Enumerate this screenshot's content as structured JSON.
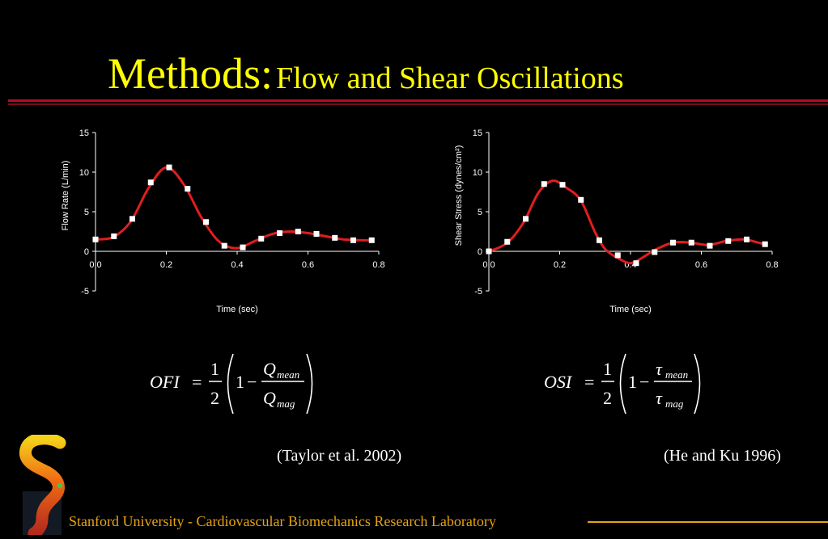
{
  "slide": {
    "title_main": "Methods:",
    "title_sub": "Flow and Shear Oscillations",
    "citation_left": "(Taylor et al. 2002)",
    "citation_right": "(He and Ku 1996)",
    "footer": "Stanford University - Cardiovascular Biomechanics Research Laboratory"
  },
  "formulas": {
    "ofi": {
      "lhs": "OFI",
      "eq": "=",
      "num": "1",
      "den": "2",
      "one": "1",
      "minus": "−",
      "top_sym": "Q",
      "top_sub": "mean",
      "bot_sym": "Q",
      "bot_sub": "mag"
    },
    "osi": {
      "lhs": "OSI",
      "eq": "=",
      "num": "1",
      "den": "2",
      "one": "1",
      "minus": "−",
      "top_sym": "τ",
      "top_sub": "mean",
      "bot_sym": "τ",
      "bot_sub": "mag"
    }
  },
  "colors": {
    "title": "#ffff00",
    "rule": "#b30d24",
    "footer": "#e8a313",
    "curve": "#e01e1e",
    "marker": "#ffffff"
  },
  "chart_data": [
    {
      "type": "line",
      "xlabel": "Time (sec)",
      "ylabel": "Flow Rate (L/min)",
      "xlim": [
        0.0,
        0.8
      ],
      "ylim": [
        -5,
        15
      ],
      "xticks": [
        "0.0",
        "0.2",
        "0.4",
        "0.6",
        "0.8"
      ],
      "yticks": [
        "-5",
        "0",
        "5",
        "10",
        "15"
      ],
      "markers": {
        "x": [
          0.0,
          0.052,
          0.104,
          0.156,
          0.208,
          0.26,
          0.312,
          0.364,
          0.416,
          0.468,
          0.52,
          0.572,
          0.624,
          0.676,
          0.728,
          0.78
        ],
        "y": [
          1.5,
          1.9,
          4.1,
          8.7,
          10.6,
          7.9,
          3.7,
          0.7,
          0.5,
          1.6,
          2.3,
          2.5,
          2.2,
          1.7,
          1.4,
          1.4
        ]
      },
      "curve": {
        "x": [
          0.0,
          0.05,
          0.1,
          0.15,
          0.2,
          0.25,
          0.3,
          0.35,
          0.4,
          0.45,
          0.5,
          0.55,
          0.6,
          0.65,
          0.7,
          0.75,
          0.78
        ],
        "y": [
          1.5,
          1.8,
          3.8,
          8.0,
          10.6,
          8.4,
          4.2,
          1.2,
          0.4,
          1.3,
          2.2,
          2.5,
          2.3,
          1.9,
          1.5,
          1.4,
          1.4
        ]
      }
    },
    {
      "type": "line",
      "xlabel": "Time (sec)",
      "ylabel": "Shear Stress (dynes/cm²)",
      "xlim": [
        0.0,
        0.8
      ],
      "ylim": [
        -5,
        15
      ],
      "xticks": [
        "0.0",
        "0.2",
        "0.4",
        "0.6",
        "0.8"
      ],
      "yticks": [
        "-5",
        "0",
        "5",
        "10",
        "15"
      ],
      "markers": {
        "x": [
          0.0,
          0.052,
          0.104,
          0.156,
          0.208,
          0.26,
          0.312,
          0.364,
          0.416,
          0.468,
          0.52,
          0.572,
          0.624,
          0.676,
          0.728,
          0.78
        ],
        "y": [
          0.0,
          1.2,
          4.1,
          8.5,
          8.4,
          6.5,
          1.4,
          -0.5,
          -1.5,
          -0.1,
          1.1,
          1.1,
          0.7,
          1.3,
          1.5,
          0.9
        ]
      },
      "curve": {
        "x": [
          0.0,
          0.03,
          0.06,
          0.1,
          0.14,
          0.18,
          0.22,
          0.26,
          0.3,
          0.33,
          0.37,
          0.4,
          0.43,
          0.47,
          0.52,
          0.57,
          0.62,
          0.67,
          0.72,
          0.76,
          0.78
        ],
        "y": [
          0.0,
          0.5,
          1.4,
          3.8,
          7.4,
          8.9,
          8.0,
          6.4,
          2.4,
          0.2,
          -1.0,
          -1.5,
          -0.9,
          0.2,
          1.1,
          1.1,
          0.8,
          1.3,
          1.5,
          1.1,
          0.9
        ]
      }
    }
  ]
}
